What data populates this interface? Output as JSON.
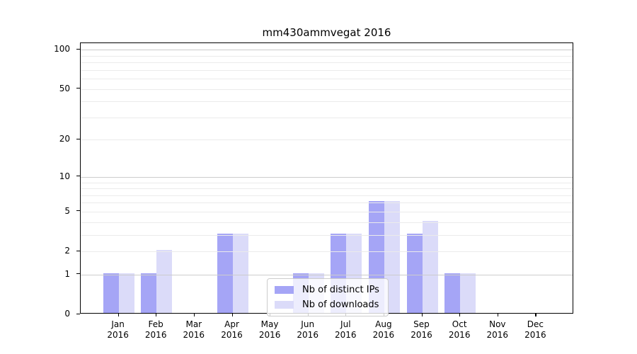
{
  "title": "mm430ammvegat 2016",
  "colors": {
    "bar_distinct_ips": "#a5a5f6",
    "bar_downloads": "#dbdbf9",
    "major_gridline": "#cccccc",
    "minor_gridline": "#ebebeb",
    "axis_spine": "#000000",
    "text": "#000000"
  },
  "legend": {
    "entries": [
      {
        "label": "Nb of distinct IPs",
        "color": "#a5a5f6"
      },
      {
        "label": "Nb of downloads",
        "color": "#dbdbf9"
      }
    ],
    "position": "lower-center"
  },
  "chart_data": {
    "type": "bar",
    "title": "mm430ammvegat 2016",
    "categories": [
      "Jan",
      "Feb",
      "Mar",
      "Apr",
      "May",
      "Jun",
      "Jul",
      "Aug",
      "Sep",
      "Oct",
      "Nov",
      "Dec"
    ],
    "category_year": "2016",
    "series": [
      {
        "name": "Nb of distinct IPs",
        "color": "#a5a5f6",
        "values": [
          1,
          1,
          0,
          3,
          0,
          1,
          3,
          6,
          3,
          1,
          0,
          0
        ]
      },
      {
        "name": "Nb of downloads",
        "color": "#dbdbf9",
        "values": [
          1,
          2,
          0,
          3,
          0,
          1,
          3,
          6,
          4,
          1,
          0,
          0
        ]
      }
    ],
    "xlabel": "",
    "ylabel": "",
    "y_scale": "log10(value+1)",
    "y_tick_labels": [
      0,
      1,
      2,
      5,
      10,
      20,
      50,
      100
    ],
    "y_major_gridlines": [
      1,
      10,
      100
    ],
    "y_minor_gridlines": [
      2,
      3,
      4,
      5,
      6,
      7,
      8,
      9,
      20,
      30,
      40,
      50,
      60,
      70,
      80,
      90
    ],
    "ylim": [
      0,
      112
    ],
    "grid": "horizontal",
    "legend_position": "lower-center"
  }
}
